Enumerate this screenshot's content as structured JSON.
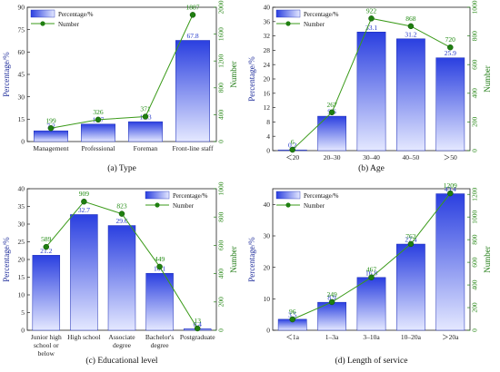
{
  "chart_data": [
    {
      "type": "bar+line",
      "caption": "(a) Type",
      "ylabel": "Percentage/%",
      "y2label": "Number",
      "categories": [
        "Management",
        "Professional",
        "Foreman",
        "Front-line staff"
      ],
      "series": [
        {
          "name": "Percentage/%",
          "type": "bar",
          "axis": "left",
          "values": [
            7.2,
            11.7,
            13.3,
            67.8
          ]
        },
        {
          "name": "Number",
          "type": "line",
          "axis": "right",
          "values": [
            199,
            326,
            371,
            1887
          ]
        }
      ],
      "ylim": [
        0,
        90
      ],
      "yticks": [
        0,
        15,
        30,
        45,
        60,
        75,
        90
      ],
      "y2lim": [
        0,
        2000
      ],
      "y2ticks": [
        0,
        400,
        800,
        1200,
        1600,
        2000
      ],
      "legend": "top-left"
    },
    {
      "type": "bar+line",
      "caption": "(b) Age",
      "ylabel": "Percentage/%",
      "y2label": "Number",
      "categories": [
        "＜20",
        "20–30",
        "30–40",
        "40–50",
        "＞50"
      ],
      "series": [
        {
          "name": "Percentage/%",
          "type": "bar",
          "axis": "left",
          "values": [
            0.2,
            9.6,
            33.1,
            31.2,
            25.9
          ]
        },
        {
          "name": "Number",
          "type": "line",
          "axis": "right",
          "values": [
            6,
            267,
            922,
            868,
            720
          ]
        }
      ],
      "ylim": [
        0,
        40
      ],
      "yticks": [
        0,
        4,
        8,
        12,
        16,
        20,
        24,
        28,
        32,
        36,
        40
      ],
      "y2lim": [
        0,
        1000
      ],
      "y2ticks": [
        0,
        200,
        400,
        600,
        800,
        1000
      ],
      "legend": "top-left"
    },
    {
      "type": "bar+line",
      "caption": "(c) Educational level",
      "ylabel": "Percentage/%",
      "y2label": "Number",
      "categories": [
        [
          "Junior high",
          "school or",
          "below"
        ],
        [
          "High school"
        ],
        [
          "Associate",
          "degree"
        ],
        [
          "Bachelor's",
          "degree"
        ],
        [
          "Postgraduate"
        ]
      ],
      "series": [
        {
          "name": "Percentage/%",
          "type": "bar",
          "axis": "left",
          "values": [
            21.2,
            32.7,
            29.6,
            16.1,
            0.4
          ]
        },
        {
          "name": "Number",
          "type": "line",
          "axis": "right",
          "values": [
            589,
            909,
            823,
            449,
            13
          ]
        }
      ],
      "ylim": [
        0,
        40
      ],
      "yticks": [
        0,
        5,
        10,
        15,
        20,
        25,
        30,
        35,
        40
      ],
      "y2lim": [
        0,
        1000
      ],
      "y2ticks": [
        0,
        200,
        400,
        600,
        800,
        1000
      ],
      "legend": "top-right"
    },
    {
      "type": "bar+line",
      "caption": "(d) Length of service",
      "ylabel": "Percentage/%",
      "y2label": "Number",
      "categories": [
        "＜1a",
        "1–3a",
        "3–10a",
        "10–20a",
        "＞20a"
      ],
      "series": [
        {
          "name": "Percentage/%",
          "type": "bar",
          "axis": "left",
          "values": [
            3.5,
            8.9,
            16.8,
            27.4,
            43.4
          ]
        },
        {
          "name": "Number",
          "type": "line",
          "axis": "right",
          "values": [
            96,
            249,
            467,
            762,
            1209
          ]
        }
      ],
      "ylim": [
        0,
        45
      ],
      "yticks": [
        0,
        10,
        20,
        30,
        40
      ],
      "y2lim": [
        0,
        1250
      ],
      "y2ticks": [
        0,
        200,
        400,
        600,
        800,
        1000,
        1200
      ],
      "legend": "top-left"
    }
  ],
  "colors": {
    "bar_top": "#2a3fe0",
    "bar_bottom": "#e4e8ff",
    "bar_edge": "#1a2bb5",
    "line": "#3a9a18",
    "marker": "#1f7f10",
    "left_axis": "#1d2b9a",
    "right_axis": "#1e7a12"
  }
}
